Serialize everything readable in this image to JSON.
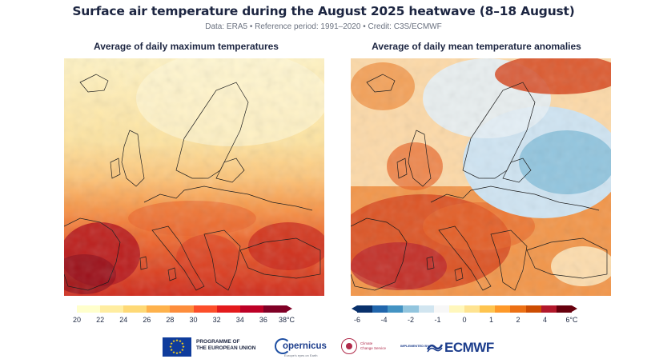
{
  "header": {
    "title": "Surface air temperature during the August 2025 heatwave (8–18 August)",
    "subtitle": "Data: ERA5 • Reference period: 1991–2020 • Credit: C3S/ECMWF"
  },
  "panels": {
    "left": {
      "title": "Average of daily maximum temperatures",
      "colorbar": {
        "ticks": [
          "20",
          "22",
          "24",
          "26",
          "28",
          "30",
          "32",
          "34",
          "36",
          "38°C"
        ],
        "colors": [
          "#ffffcc",
          "#ffeda0",
          "#fed976",
          "#feb24c",
          "#fd8d3c",
          "#fc4e2a",
          "#e31a1c",
          "#bd0026",
          "#800026"
        ]
      }
    },
    "right": {
      "title": "Average of daily mean temperature anomalies",
      "colorbar": {
        "ticks": [
          "-6",
          "-4",
          "-2",
          "-1",
          "0",
          "1",
          "2",
          "4",
          "6°C"
        ],
        "colors": [
          "#08306b",
          "#2166ac",
          "#4393c3",
          "#92c5de",
          "#d1e5f0",
          "#f7f7f7",
          "#fff7bc",
          "#fee391",
          "#fec44f",
          "#fe9929",
          "#ec7014",
          "#cc4c02",
          "#b2182b",
          "#67000d"
        ]
      }
    }
  },
  "footer": {
    "eu_line1": "PROGRAMME OF",
    "eu_line2": "THE EUROPEAN UNION",
    "copernicus": "opernicus",
    "copernicus_sub": "Europe's eyes on Earth",
    "c3s_line1": "Climate",
    "c3s_line2": "Change Service",
    "implemented_by": "IMPLEMENTED BY",
    "ecmwf": "ECMWF"
  }
}
